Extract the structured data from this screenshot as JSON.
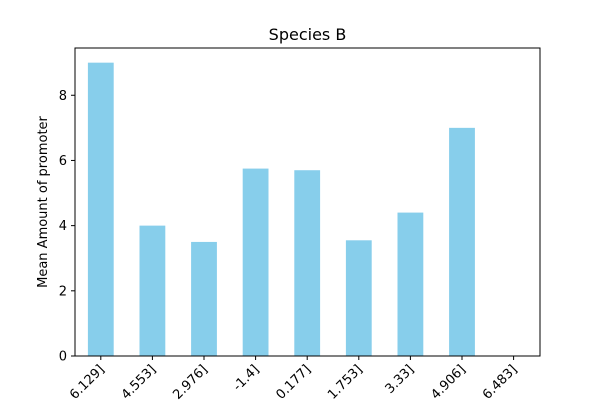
{
  "chart_data": {
    "type": "bar",
    "title": "Species B",
    "xlabel": "",
    "ylabel": "Mean Amount of promoter",
    "categories": [
      "6.129]",
      "4.553]",
      "2.976]",
      "-1.4]",
      "0.177]",
      "1.753]",
      "3.33]",
      "4.906]",
      "6.483]"
    ],
    "values": [
      9.0,
      4.0,
      3.5,
      5.75,
      5.7,
      3.55,
      4.4,
      7.0,
      0
    ],
    "ylim": [
      0,
      9.45
    ],
    "yticks": [
      0,
      2,
      4,
      6,
      8
    ],
    "grid": false,
    "legend": "none",
    "bar_color": "#87ceeb"
  }
}
